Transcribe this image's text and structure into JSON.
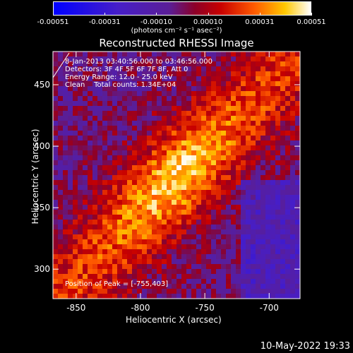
{
  "colorbar": {
    "ticks": [
      "-0.00051",
      "-0.00031",
      "-0.00010",
      "0.00010",
      "0.00031",
      "0.00051"
    ],
    "units_label": "(photons cm⁻² s⁻¹ asec⁻²)"
  },
  "title": "Reconstructed RHESSI Image",
  "info": {
    "time_range": "8-Jan-2013 03:40:56.000 to 03:46:56.000",
    "detectors": "Detectors: 3F 4F 5F 6F 7F 8F, Att 0",
    "energy_range": "Energy Range: 12.0 - 25.0 keV",
    "clean_counts": "Clean    Total counts: 1.34E+04",
    "peak_position": "Position of Peak = [-755,403]"
  },
  "axes": {
    "xlabel": "Heliocentric X (arcsec)",
    "ylabel": "Heliocentric Y (arcsec)",
    "x_ticks": [
      -850,
      -800,
      -750,
      -700
    ],
    "y_ticks": [
      300,
      350,
      400,
      450
    ],
    "xlim": [
      -868,
      -676
    ],
    "ylim": [
      276,
      477
    ]
  },
  "date_stamp": "10-May-2022 19:33"
}
